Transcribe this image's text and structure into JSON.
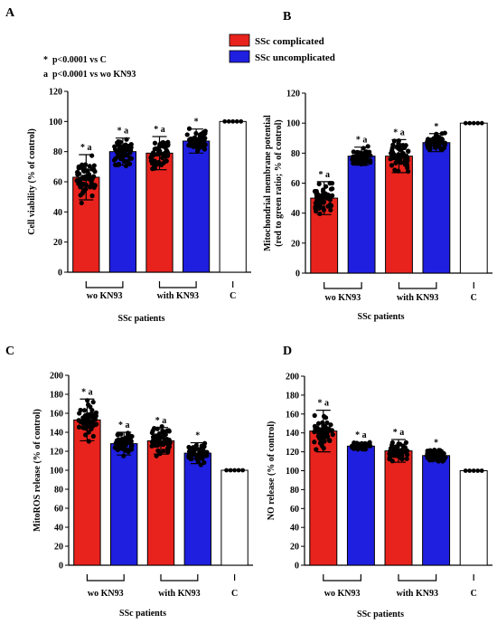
{
  "figure": {
    "legend": {
      "items": [
        {
          "label": "SSc complicated",
          "color": "#e8231d"
        },
        {
          "label": "SSc uncomplicated",
          "color": "#1f1fe0"
        }
      ]
    },
    "notes": [
      "*  p<0.0001 vs C",
      "a  p<0.0001 vs wo KN93"
    ]
  },
  "chart_data": [
    {
      "panel": "A",
      "type": "bar",
      "categories": [
        "wo KN93 complicated",
        "wo KN93 uncomplicated",
        "with KN93 complicated",
        "with KN93 uncomplicated",
        "C"
      ],
      "values": [
        63,
        80,
        79,
        87,
        100
      ],
      "errors": [
        15,
        9,
        11,
        8,
        0
      ],
      "colors": [
        "#e8231d",
        "#1f1fe0",
        "#e8231d",
        "#1f1fe0",
        "#ffffff"
      ],
      "significance": [
        "* a",
        "* a",
        "* a",
        "*",
        ""
      ],
      "ylabel": "Cell viability (% of control)",
      "xlabel": "SSc patients",
      "group_labels": [
        "wo KN93",
        "with KN93",
        "C"
      ],
      "ylim": [
        0,
        120
      ],
      "yticks": [
        0,
        20,
        40,
        60,
        80,
        100,
        120
      ],
      "tick_labels": [
        "0",
        "20",
        "40",
        "60",
        "80",
        "100",
        "120"
      ]
    },
    {
      "panel": "B",
      "type": "bar",
      "categories": [
        "wo KN93 complicated",
        "wo KN93 uncomplicated",
        "with KN93 complicated",
        "with KN93 uncomplicated",
        "C"
      ],
      "values": [
        50,
        78,
        78,
        87,
        100
      ],
      "errors": [
        11,
        6,
        11,
        6,
        0
      ],
      "colors": [
        "#e8231d",
        "#1f1fe0",
        "#e8231d",
        "#1f1fe0",
        "#ffffff"
      ],
      "significance": [
        "* a",
        "* a",
        "* a",
        "*",
        ""
      ],
      "ylabel": "Mitochondrial membrane potential (red to green ratio; % of control)",
      "ylabel_lines": [
        "Mitochondrial membrane potential",
        "(red to green ratio; % of control)"
      ],
      "xlabel": "SSc patients",
      "group_labels": [
        "wo KN93",
        "with KN93",
        "C"
      ],
      "ylim": [
        0,
        120
      ],
      "yticks": [
        0,
        20,
        40,
        60,
        80,
        100,
        120
      ],
      "tick_labels": [
        "0",
        "20",
        "40",
        "60",
        "80",
        "100",
        "120"
      ]
    },
    {
      "panel": "C",
      "type": "bar",
      "categories": [
        "wo KN93 complicated",
        "wo KN93 uncomplicated",
        "with KN93 complicated",
        "with KN93 uncomplicated",
        "C"
      ],
      "values": [
        153,
        128,
        131,
        118,
        100
      ],
      "errors": [
        22,
        12,
        14,
        11,
        0
      ],
      "colors": [
        "#e8231d",
        "#1f1fe0",
        "#e8231d",
        "#1f1fe0",
        "#ffffff"
      ],
      "significance": [
        "* a",
        "* a",
        "* a",
        "*",
        ""
      ],
      "ylabel": "MitoROS release (% of control)",
      "xlabel": "SSc patients",
      "group_labels": [
        "wo KN93",
        "with KN93",
        "C"
      ],
      "ylim": [
        0,
        200
      ],
      "yticks": [
        0,
        20,
        40,
        60,
        80,
        100,
        120,
        140,
        160,
        180,
        200
      ],
      "tick_labels": [
        "0",
        "20",
        "40",
        "60",
        "80",
        "100",
        "120",
        "140",
        "160",
        "180",
        "200"
      ]
    },
    {
      "panel": "D",
      "type": "bar",
      "categories": [
        "wo KN93 complicated",
        "wo KN93 uncomplicated",
        "with KN93 complicated",
        "with KN93 uncomplicated",
        "C"
      ],
      "values": [
        142,
        126,
        121,
        116,
        100
      ],
      "errors": [
        22,
        4,
        12,
        6,
        0
      ],
      "colors": [
        "#e8231d",
        "#1f1fe0",
        "#e8231d",
        "#1f1fe0",
        "#ffffff"
      ],
      "significance": [
        "* a",
        "* a",
        "* a",
        "*",
        ""
      ],
      "ylabel": "NO release (% of control)",
      "xlabel": "SSc patients",
      "group_labels": [
        "wo KN93",
        "with KN93",
        "C"
      ],
      "ylim": [
        0,
        200
      ],
      "yticks": [
        0,
        20,
        40,
        60,
        80,
        100,
        120,
        140,
        160,
        180,
        200
      ],
      "tick_labels": [
        "0",
        "20",
        "40",
        "60",
        "80",
        "100",
        "120",
        "140",
        "160",
        "180",
        "200"
      ]
    }
  ]
}
